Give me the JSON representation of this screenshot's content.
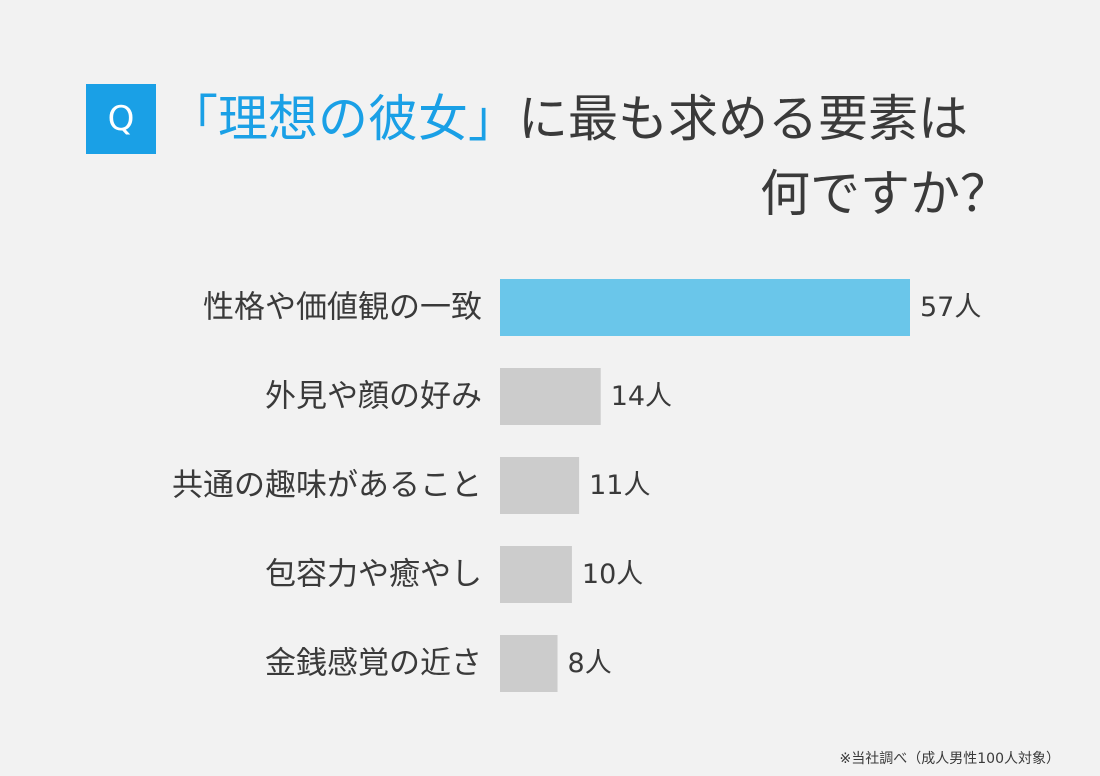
{
  "title": {
    "badge": "Q",
    "highlight": "「理想の彼女」",
    "line1_rest": "に最も求める要素は",
    "line2": "何ですか？"
  },
  "footnote": "※当社調べ（成人男性100人対象）",
  "colors": {
    "accent": "#1aa0e6",
    "highlight_bar": "#6ac6ea",
    "default_bar": "#cccccc",
    "text": "#3a3a3a",
    "background": "#f2f2f2"
  },
  "chart_data": {
    "type": "bar",
    "orientation": "horizontal",
    "categories": [
      "性格や価値観の一致",
      "外見や顔の好み",
      "共通の趣味があること",
      "包容力や癒やし",
      "金銭感覚の近さ"
    ],
    "values": [
      57,
      14,
      11,
      10,
      8
    ],
    "value_labels": [
      "57人",
      "14人",
      "11人",
      "10人",
      "8人"
    ],
    "unit": "人",
    "highlighted_index": 0,
    "xlim": [
      0,
      57
    ],
    "grid": false
  }
}
